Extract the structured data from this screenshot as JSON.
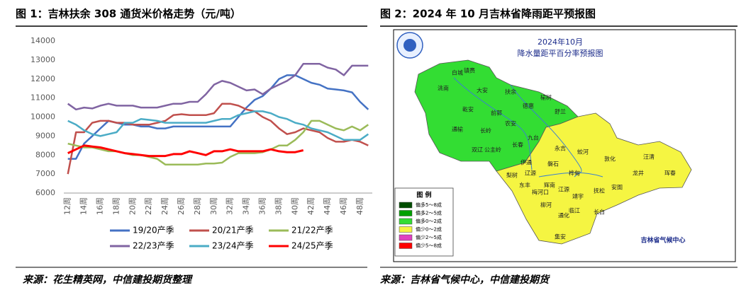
{
  "fig1_title": "图 1：吉林扶余 308 通货米价格走势（元/吨）",
  "fig2_title": "图 2：2024 年 10 月吉林省降雨距平预报图",
  "source1": "来源：花生精英网，中信建投期货整理",
  "source2": "来源：吉林省气候中心，中信建投期货",
  "chart_data": {
    "type": "line",
    "categories": [
      "12周",
      null,
      "14周",
      null,
      "16周",
      null,
      "18周",
      null,
      "20周",
      null,
      "22周",
      null,
      "24周",
      null,
      "26周",
      null,
      "28周",
      null,
      "30周",
      null,
      "32周",
      null,
      "34周",
      null,
      "36周",
      null,
      "38周",
      null,
      "40周",
      null,
      "42周",
      null,
      "44周",
      null,
      "46周",
      null,
      "48周",
      null
    ],
    "ylim": [
      6000,
      14000
    ],
    "yticks": [
      6000,
      7000,
      8000,
      9000,
      10000,
      11000,
      12000,
      13000,
      14000
    ],
    "grid": false,
    "legend": "bottom",
    "series": [
      {
        "name": "19/20产季",
        "color": "#4472c4",
        "values": [
          7800,
          7800,
          8600,
          9000,
          9400,
          9800,
          9700,
          9600,
          9600,
          9500,
          9500,
          9400,
          9400,
          9500,
          9500,
          9500,
          9500,
          9500,
          9500,
          9500,
          9500,
          10000,
          10500,
          10900,
          11100,
          11500,
          12000,
          12200,
          12200,
          12000,
          11800,
          11700,
          11500,
          11450,
          11400,
          11300,
          10800,
          10400
        ]
      },
      {
        "name": "20/21产季",
        "color": "#c0504d",
        "values": [
          7000,
          9200,
          9200,
          9700,
          9800,
          9800,
          9700,
          9700,
          9600,
          9600,
          9600,
          9700,
          9800,
          10100,
          10150,
          10100,
          10100,
          10100,
          10200,
          10700,
          10700,
          10600,
          10400,
          10300,
          10000,
          9800,
          9400,
          9100,
          9200,
          9400,
          9300,
          9200,
          8900,
          8700,
          8700,
          8800,
          8700,
          8500
        ]
      },
      {
        "name": "21/22产季",
        "color": "#9bbb59",
        "values": [
          8600,
          8500,
          8400,
          8400,
          8300,
          8200,
          8200,
          8100,
          8000,
          8000,
          7900,
          7800,
          7500,
          7500,
          7500,
          7500,
          7500,
          7550,
          7550,
          7600,
          7900,
          8100,
          8100,
          8100,
          8150,
          8300,
          8500,
          8500,
          8800,
          9200,
          9800,
          9800,
          9600,
          9400,
          9300,
          9500,
          9300,
          9600
        ]
      },
      {
        "name": "22/23产季",
        "color": "#8064a2",
        "values": [
          10700,
          10400,
          10500,
          10450,
          10600,
          10700,
          10600,
          10600,
          10600,
          10500,
          10500,
          10500,
          10600,
          10700,
          10700,
          10800,
          10800,
          11200,
          11700,
          11900,
          11800,
          11600,
          11400,
          11450,
          11200,
          11500,
          11700,
          11900,
          12200,
          12800,
          12800,
          12800,
          12600,
          12500,
          12200,
          12700,
          12700,
          12700
        ]
      },
      {
        "name": "23/24产季",
        "color": "#4bacc6",
        "values": [
          9800,
          9600,
          9300,
          9100,
          9000,
          9100,
          9200,
          9700,
          9700,
          9900,
          9850,
          9800,
          9700,
          9700,
          9700,
          9700,
          9700,
          9700,
          9800,
          9900,
          9900,
          10100,
          10200,
          10300,
          10300,
          10200,
          10000,
          9900,
          9700,
          9600,
          9400,
          9300,
          9200,
          9000,
          8800,
          8800,
          8800,
          9100
        ]
      },
      {
        "name": "24/25产季",
        "color": "#ff0000",
        "values": [
          8100,
          8300,
          8500,
          8450,
          8400,
          8300,
          8200,
          8100,
          8050,
          8000,
          7950,
          7950,
          7950,
          8050,
          8050,
          8200,
          8100,
          8000,
          8200,
          8200,
          8300,
          8200,
          8200,
          8200,
          8200,
          8300,
          8200,
          8150,
          8150,
          8250,
          null,
          null,
          null,
          null,
          null,
          null,
          null,
          null
        ]
      }
    ]
  },
  "map": {
    "date": "2024年10月",
    "title": "降水量距平百分率预报图",
    "legend_title": "图 例",
    "legend": [
      {
        "label": "偏多5～8成",
        "color": "#004d00"
      },
      {
        "label": "偏多2～5成",
        "color": "#00a000"
      },
      {
        "label": "偏多0～2成",
        "color": "#33dd33"
      },
      {
        "label": "偏少0～2成",
        "color": "#f5f542"
      },
      {
        "label": "偏少2～5成",
        "color": "#e040c0"
      },
      {
        "label": "偏少5～8成",
        "color": "#ff0000"
      }
    ],
    "credit": "吉林省气候中心",
    "places": [
      "镇赉",
      "洮南",
      "大安",
      "扶余",
      "乾安",
      "前郭",
      "长岭",
      "农安",
      "德惠",
      "榆树",
      "舒兰",
      "长春",
      "九台",
      "永吉",
      "蛟河",
      "敦化",
      "汪清",
      "珲春",
      "龙井",
      "安图",
      "抚松",
      "靖宇",
      "临江",
      "长白",
      "江源",
      "通化",
      "集安",
      "柳河",
      "辉南",
      "梅河口",
      "东丰",
      "辽源",
      "伊通",
      "磐石",
      "桦甸",
      "梨树",
      "公主岭",
      "双辽",
      "通榆",
      "白城"
    ]
  }
}
